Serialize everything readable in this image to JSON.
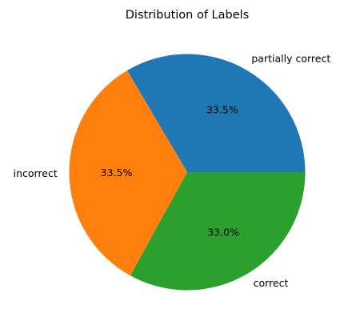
{
  "chart_data": {
    "type": "pie",
    "title": "Distribution of Labels",
    "start_angle_deg": 0,
    "direction": "counterclockwise",
    "slices": [
      {
        "label": "partially correct",
        "value": 33.5,
        "pct_label": "33.5%",
        "color": "#1f77b4"
      },
      {
        "label": "incorrect",
        "value": 33.5,
        "pct_label": "33.5%",
        "color": "#ff7f0e"
      },
      {
        "label": "correct",
        "value": 33.0,
        "pct_label": "33.0%",
        "color": "#2ca02c"
      }
    ]
  }
}
